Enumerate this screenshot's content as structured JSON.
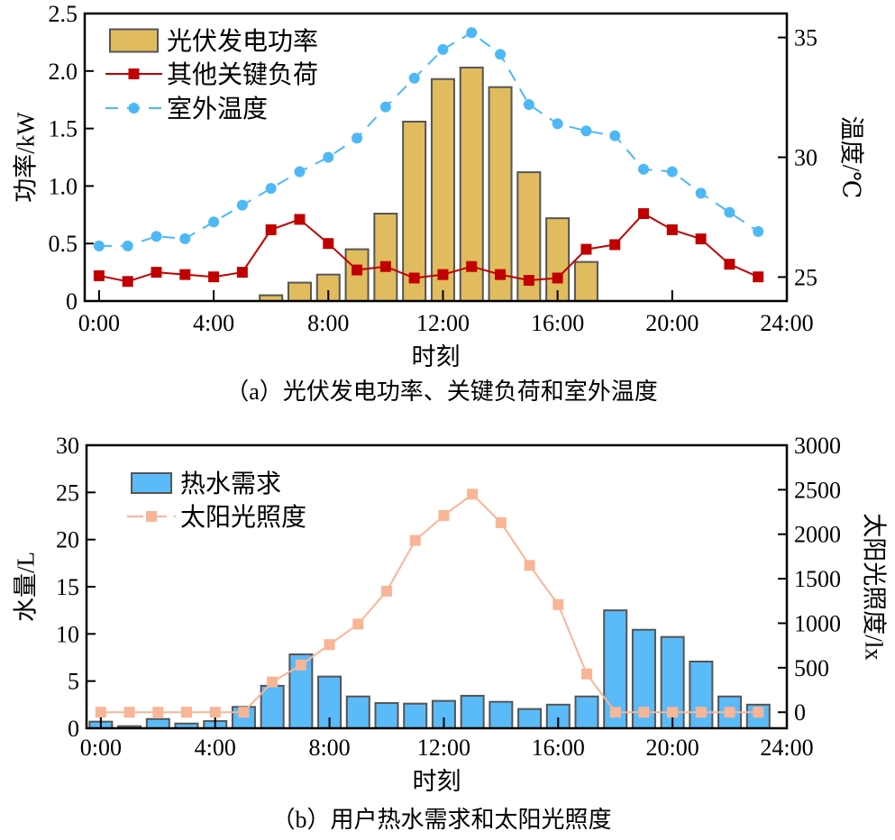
{
  "chart_data": [
    {
      "type": "bar+line",
      "caption": "（a）光伏发电功率、关键负荷和室外温度",
      "xlabel": "时刻",
      "ylabel": "功率/kW",
      "ylabel_right": "温度/℃",
      "x_tick_labels": [
        "0:00",
        "4:00",
        "8:00",
        "12:00",
        "16:00",
        "20:00",
        "24:00"
      ],
      "y_tick_labels": [
        "0",
        "0.5",
        "1.0",
        "1.5",
        "2.0",
        "2.5"
      ],
      "y_right_tick_labels": [
        "25",
        "30",
        "35"
      ],
      "ylim": [
        0,
        2.5
      ],
      "ylim_right": [
        24,
        36
      ],
      "x": [
        0,
        1,
        2,
        3,
        4,
        5,
        6,
        7,
        8,
        9,
        10,
        11,
        12,
        13,
        14,
        15,
        16,
        17,
        18,
        19,
        20,
        21,
        22,
        23
      ],
      "legend_position": "top-left",
      "series": [
        {
          "name": "光伏发电功率",
          "kind": "bar",
          "axis": "left",
          "color": "#E0BC5E",
          "values": [
            0,
            0,
            0,
            0,
            0,
            0,
            0.05,
            0.16,
            0.23,
            0.45,
            0.76,
            1.56,
            1.93,
            2.03,
            1.86,
            1.12,
            0.72,
            0.34,
            0,
            0,
            0,
            0,
            0,
            0
          ]
        },
        {
          "name": "其他关键负荷",
          "kind": "line",
          "axis": "left",
          "color": "#C00000",
          "marker": "square",
          "values": [
            0.22,
            0.17,
            0.25,
            0.23,
            0.21,
            0.25,
            0.62,
            0.71,
            0.5,
            0.27,
            0.3,
            0.2,
            0.23,
            0.3,
            0.23,
            0.18,
            0.2,
            0.45,
            0.49,
            0.76,
            0.62,
            0.54,
            0.32,
            0.21
          ]
        },
        {
          "name": "室外温度",
          "kind": "line",
          "axis": "right",
          "color": "#4DB8F5",
          "marker": "circle",
          "dash": true,
          "values": [
            26.3,
            26.3,
            26.7,
            26.6,
            27.3,
            28.0,
            28.7,
            29.4,
            30.0,
            30.8,
            32.1,
            33.3,
            34.5,
            35.2,
            34.3,
            32.2,
            31.4,
            31.1,
            30.9,
            29.5,
            29.4,
            28.5,
            27.7,
            26.9
          ]
        }
      ]
    },
    {
      "type": "bar+line",
      "caption": "（b）用户热水需求和太阳光照度",
      "xlabel": "时刻",
      "ylabel": "水量/L",
      "ylabel_right": "太阳光照度/lx",
      "x_tick_labels": [
        "0:00",
        "4:00",
        "8:00",
        "12:00",
        "16:00",
        "20:00",
        "24:00"
      ],
      "y_tick_labels": [
        "0",
        "5",
        "10",
        "15",
        "20",
        "25",
        "30"
      ],
      "y_right_tick_labels": [
        "0",
        "500",
        "1000",
        "1500",
        "2000",
        "2500",
        "3000"
      ],
      "ylim": [
        0,
        30
      ],
      "ylim_right": [
        -180,
        3000
      ],
      "x": [
        0,
        1,
        2,
        3,
        4,
        5,
        6,
        7,
        8,
        9,
        10,
        11,
        12,
        13,
        14,
        15,
        16,
        17,
        18,
        19,
        20,
        21,
        22,
        23
      ],
      "legend_position": "top-left",
      "series": [
        {
          "name": "热水需求",
          "kind": "bar",
          "axis": "left",
          "color": "#5BBAF8",
          "values": [
            0.7,
            0.22,
            0.98,
            0.5,
            0.76,
            2.26,
            4.5,
            7.83,
            5.48,
            3.37,
            2.67,
            2.61,
            2.9,
            3.44,
            2.8,
            2.04,
            2.5,
            3.37,
            12.5,
            10.44,
            9.68,
            7.07,
            3.37,
            2.5
          ]
        },
        {
          "name": "太阳光照度",
          "kind": "line",
          "axis": "right",
          "color": "#F8B597",
          "marker": "square",
          "values": [
            0,
            0,
            0,
            0,
            0,
            0,
            340,
            530,
            760,
            990,
            1360,
            1930,
            2210,
            2450,
            2130,
            1650,
            1210,
            430,
            0,
            0,
            0,
            0,
            0,
            0
          ]
        }
      ]
    }
  ]
}
